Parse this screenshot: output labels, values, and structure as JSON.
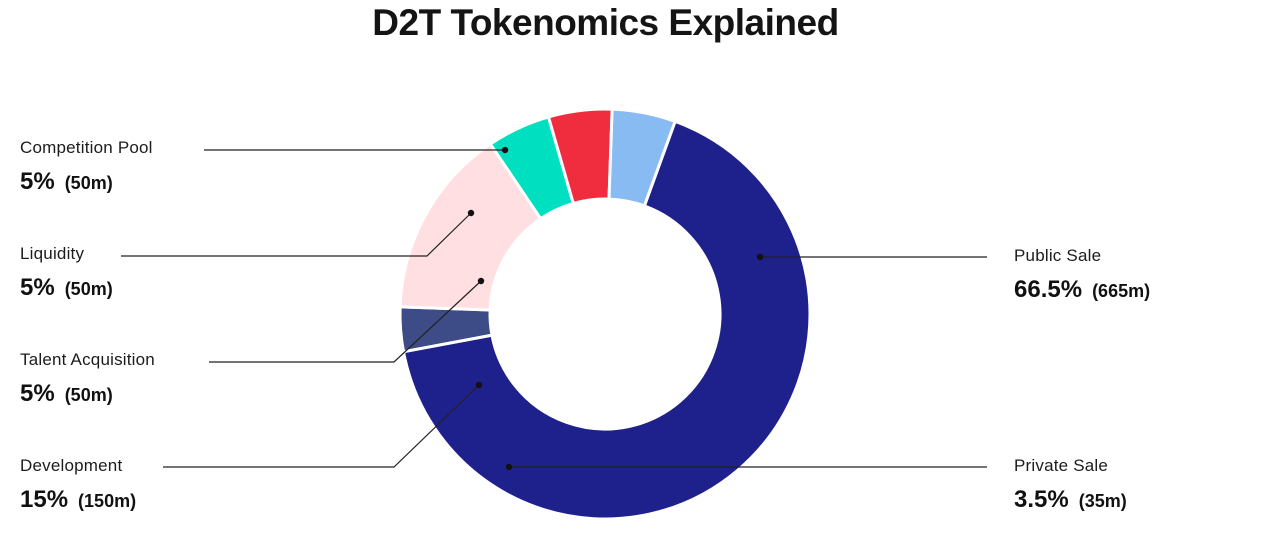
{
  "title": "D2T Tokenomics Explained",
  "chart_data": {
    "type": "pie",
    "title": "D2T Tokenomics Explained",
    "donut": true,
    "slices": [
      {
        "label": "Public Sale",
        "percent": 66.5,
        "display_percent": "66.5%",
        "amount": "(665m)",
        "color": "#1e218b"
      },
      {
        "label": "Private Sale",
        "percent": 3.5,
        "display_percent": "3.5%",
        "amount": "(35m)",
        "color": "#3d4b86"
      },
      {
        "label": "Development",
        "percent": 15,
        "display_percent": "15%",
        "amount": "(150m)",
        "color": "#ffdfe2"
      },
      {
        "label": "Talent Acquisition",
        "percent": 5,
        "display_percent": "5%",
        "amount": "(50m)",
        "color": "#00e0c0"
      },
      {
        "label": "Liquidity",
        "percent": 5,
        "display_percent": "5%",
        "amount": "(50m)",
        "color": "#f02d3e"
      },
      {
        "label": "Competition Pool",
        "percent": 5,
        "display_percent": "5%",
        "amount": "(50m)",
        "color": "#88bbf2"
      }
    ]
  }
}
